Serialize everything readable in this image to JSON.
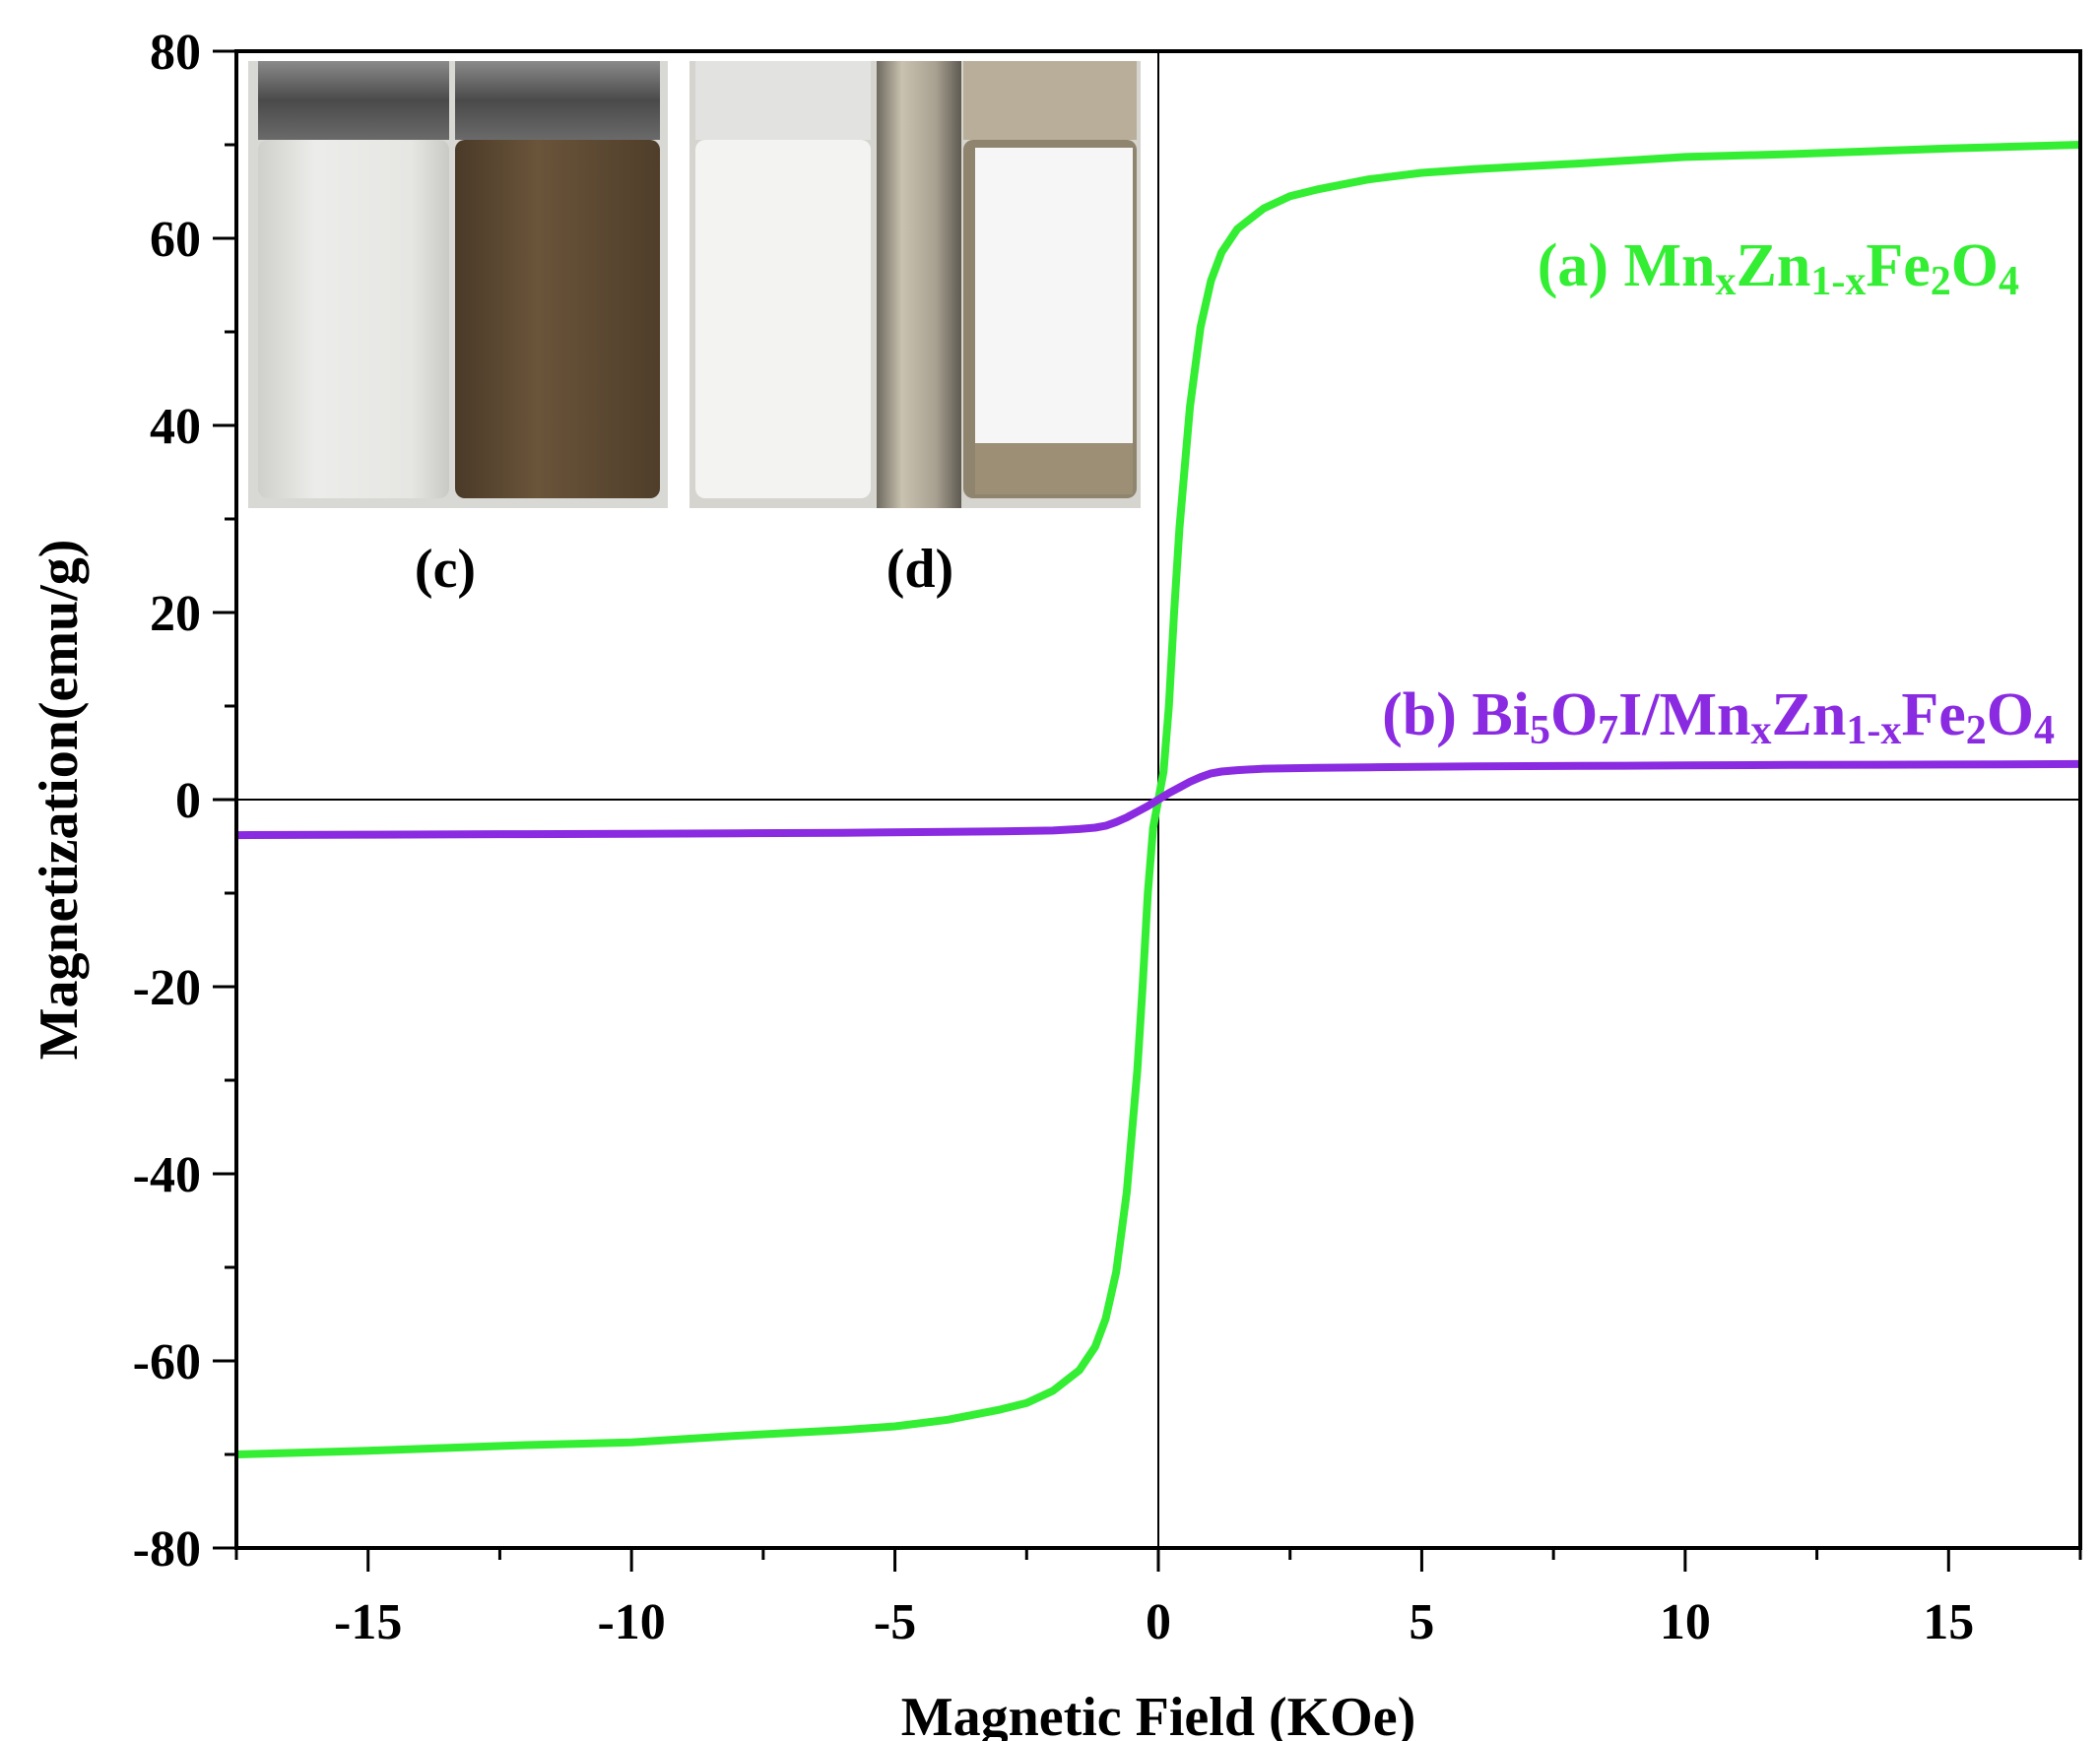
{
  "chart_data": {
    "type": "line",
    "xlabel": "Magnetic Field (KOe)",
    "ylabel": "Magnetization(emu/g)",
    "xlim": [
      -17.5,
      17.5
    ],
    "ylim": [
      -80,
      80
    ],
    "xticks": [
      -15,
      -10,
      -5,
      0,
      5,
      10,
      15
    ],
    "yticks": [
      -80,
      -60,
      -40,
      -20,
      0,
      20,
      40,
      60,
      80
    ],
    "grid": false,
    "series": [
      {
        "name": "(a) MnxZn1-xFe2O4",
        "label_parts": [
          {
            "t": "(a) Mn"
          },
          {
            "t": "x",
            "sub": true
          },
          {
            "t": "Zn"
          },
          {
            "t": "1-x",
            "sub": true
          },
          {
            "t": "Fe"
          },
          {
            "t": "2",
            "sub": true
          },
          {
            "t": "O"
          },
          {
            "t": "4",
            "sub": true
          }
        ],
        "color": "#33ee33",
        "x": [
          -17.5,
          -15,
          -12,
          -10,
          -8,
          -6,
          -5,
          -4,
          -3,
          -2.5,
          -2,
          -1.5,
          -1.2,
          -1,
          -0.8,
          -0.6,
          -0.4,
          -0.3,
          -0.2,
          -0.1,
          0,
          0.1,
          0.2,
          0.3,
          0.4,
          0.6,
          0.8,
          1,
          1.2,
          1.5,
          2,
          2.5,
          3,
          4,
          5,
          6,
          8,
          10,
          12,
          15,
          17.5
        ],
        "y": [
          -70,
          -69.6,
          -69,
          -68.7,
          -68,
          -67.4,
          -67,
          -66.3,
          -65.2,
          -64.5,
          -63.2,
          -61,
          -58.5,
          -55.5,
          -50.5,
          -42,
          -29,
          -20,
          -10,
          -3,
          0,
          3,
          10,
          20,
          29,
          42,
          50.5,
          55.5,
          58.5,
          61,
          63.2,
          64.5,
          65.2,
          66.3,
          67,
          67.4,
          68,
          68.7,
          69,
          69.6,
          70
        ]
      },
      {
        "name": "(b) Bi5O7I/MnxZn1-xFe2O4",
        "label_parts": [
          {
            "t": "(b) Bi"
          },
          {
            "t": "5",
            "sub": true
          },
          {
            "t": "O"
          },
          {
            "t": "7",
            "sub": true
          },
          {
            "t": "I/Mn"
          },
          {
            "t": "x",
            "sub": true
          },
          {
            "t": "Zn"
          },
          {
            "t": "1-x",
            "sub": true
          },
          {
            "t": "Fe"
          },
          {
            "t": "2",
            "sub": true
          },
          {
            "t": "O"
          },
          {
            "t": "4",
            "sub": true
          }
        ],
        "color": "#8a2be2",
        "x": [
          -17.5,
          -15,
          -12,
          -10,
          -8,
          -6,
          -4,
          -3,
          -2,
          -1.5,
          -1.2,
          -1,
          -0.8,
          -0.6,
          -0.4,
          -0.2,
          0,
          0.2,
          0.4,
          0.6,
          0.8,
          1,
          1.2,
          1.5,
          2,
          3,
          4,
          6,
          8,
          10,
          12,
          15,
          17.5
        ],
        "y": [
          -3.8,
          -3.75,
          -3.7,
          -3.65,
          -3.6,
          -3.55,
          -3.45,
          -3.4,
          -3.3,
          -3.15,
          -3.0,
          -2.8,
          -2.4,
          -1.9,
          -1.3,
          -0.7,
          0,
          0.7,
          1.3,
          1.9,
          2.4,
          2.8,
          3.0,
          3.15,
          3.3,
          3.4,
          3.45,
          3.55,
          3.6,
          3.65,
          3.7,
          3.75,
          3.8
        ]
      }
    ],
    "inset": {
      "panels": [
        {
          "label": "(c)",
          "description_colors": [
            "#e8e8e4",
            "#5a4630"
          ]
        },
        {
          "label": "(d)",
          "description_colors": [
            "#f2f2f0",
            "#9a8f7a",
            "#f4f4f4"
          ]
        }
      ]
    }
  }
}
